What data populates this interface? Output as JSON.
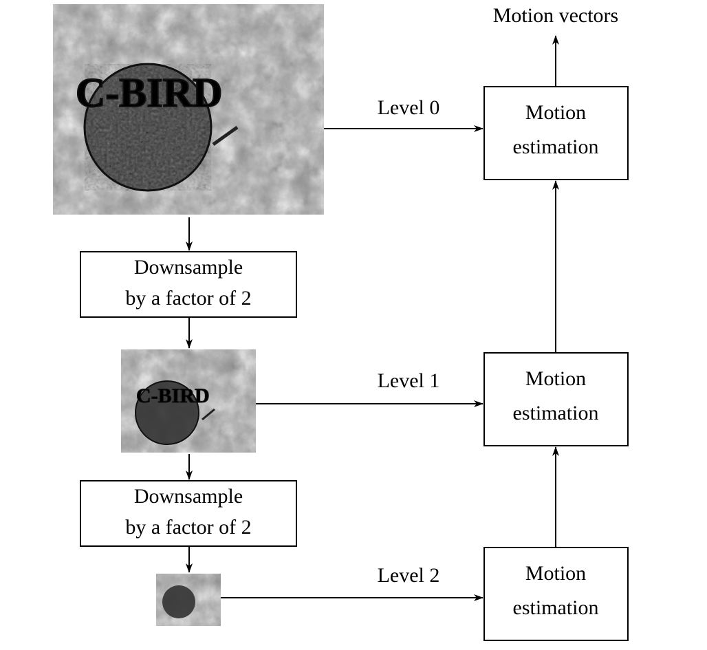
{
  "diagram": {
    "output_label": "Motion vectors",
    "levels": [
      {
        "label": "Level 0"
      },
      {
        "label": "Level 1"
      },
      {
        "label": "Level 2"
      }
    ],
    "motion_estimation": [
      {
        "line1": "Motion",
        "line2": "estimation"
      },
      {
        "line1": "Motion",
        "line2": "estimation"
      },
      {
        "line1": "Motion",
        "line2": "estimation"
      }
    ],
    "downsample": [
      {
        "line1": "Downsample",
        "line2": "by a factor of 2"
      },
      {
        "line1": "Downsample",
        "line2": "by a factor of 2"
      }
    ],
    "images": [
      {
        "name": "frame-level-0",
        "logo_text": "C-BIRD"
      },
      {
        "name": "frame-level-1",
        "logo_text": "C-BIRD"
      },
      {
        "name": "frame-level-2",
        "logo_text": ""
      }
    ],
    "colors": {
      "line": "#000000",
      "box_fill": "#ffffff"
    }
  }
}
